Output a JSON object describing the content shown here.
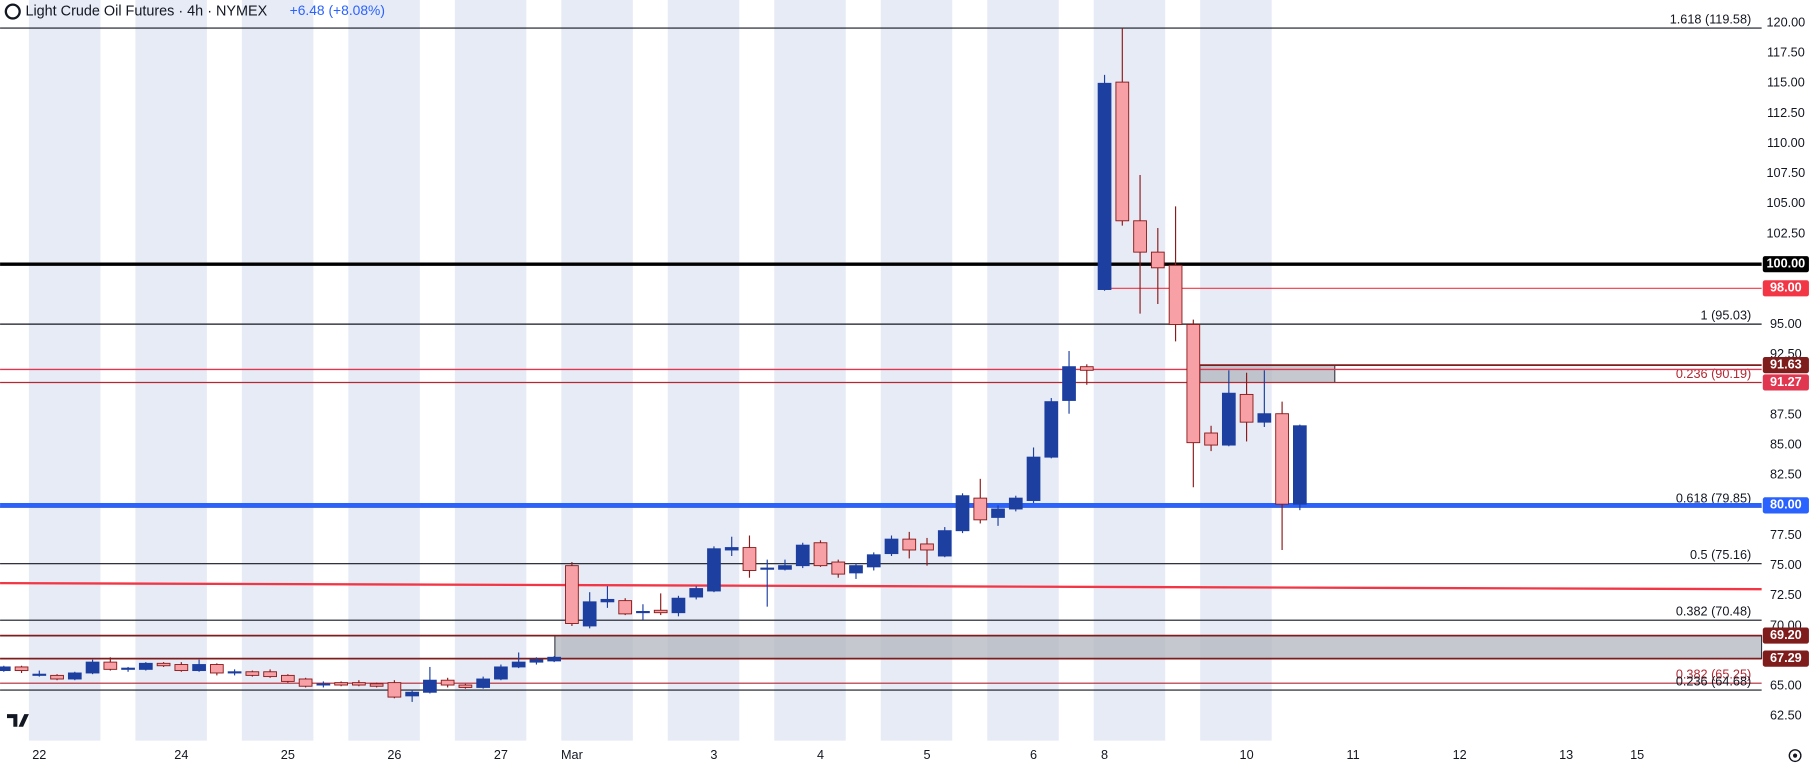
{
  "chart_data": {
    "type": "candlestick",
    "title": "Light Crude Oil Futures · 4h · NYMEX",
    "change": "+6.48 (+8.08%)",
    "up_color": "#1c3fa0",
    "down_color": "#f7a1a6",
    "down_wick_color": "#8b1a1a",
    "open": [
      66.3,
      66.6,
      65.9,
      65.9,
      65.6,
      66.1,
      67.0,
      66.4,
      66.4,
      66.9,
      66.8,
      66.3,
      66.8,
      66.1,
      66.2,
      66.2,
      65.9,
      65.6,
      65.1,
      65.3,
      65.3,
      65.2,
      65.3,
      64.2,
      64.5,
      65.5,
      65.1,
      64.9,
      65.6,
      66.6,
      67.0,
      67.1,
      75.0,
      70.0,
      72.0,
      72.1,
      71.1,
      71.3,
      71.1,
      72.4,
      72.9,
      76.3,
      76.5,
      74.7,
      74.7,
      75.0,
      76.9,
      75.3,
      74.4,
      74.9,
      76.0,
      77.2,
      76.8,
      75.8,
      77.9,
      80.6,
      79.0,
      79.7,
      80.4,
      84.0,
      88.7,
      91.5,
      97.9,
      115.1,
      103.6,
      101.0,
      99.9,
      95.0,
      86.0,
      85.0,
      89.2,
      86.9,
      87.6,
      80.1
    ],
    "high": [
      66.7,
      66.7,
      66.3,
      66.0,
      66.2,
      67.2,
      67.4,
      66.6,
      67.0,
      67.0,
      67.0,
      67.2,
      66.9,
      66.4,
      66.3,
      66.4,
      66.0,
      65.7,
      65.4,
      65.4,
      65.5,
      65.3,
      65.5,
      64.7,
      66.6,
      65.7,
      65.2,
      65.8,
      66.8,
      67.8,
      67.4,
      67.5,
      75.3,
      72.8,
      73.3,
      72.3,
      71.8,
      72.7,
      72.5,
      73.3,
      76.6,
      77.4,
      77.5,
      75.5,
      75.5,
      76.9,
      77.1,
      75.5,
      75.2,
      76.1,
      77.5,
      77.8,
      77.3,
      78.2,
      81.0,
      82.2,
      80.0,
      80.8,
      84.8,
      88.9,
      92.8,
      91.7,
      115.7,
      119.6,
      107.4,
      103.0,
      104.8,
      95.4,
      86.6,
      91.2,
      91.0,
      91.2,
      88.6,
      86.7
    ],
    "low": [
      66.2,
      66.1,
      65.8,
      65.5,
      65.5,
      66.0,
      66.3,
      66.2,
      66.3,
      66.6,
      66.2,
      66.2,
      65.9,
      65.9,
      65.8,
      65.7,
      65.3,
      64.9,
      64.9,
      65.0,
      65.0,
      64.9,
      64.0,
      63.7,
      64.4,
      64.9,
      64.8,
      64.8,
      65.5,
      66.5,
      66.8,
      67.0,
      70.0,
      69.8,
      71.5,
      70.9,
      70.5,
      70.9,
      70.8,
      72.2,
      72.8,
      75.8,
      74.0,
      71.6,
      74.6,
      74.8,
      74.9,
      74.0,
      73.9,
      74.6,
      75.8,
      75.6,
      75.0,
      75.7,
      77.7,
      78.5,
      78.3,
      79.5,
      80.2,
      83.9,
      87.6,
      90.0,
      97.8,
      103.2,
      95.9,
      96.7,
      93.6,
      81.5,
      84.5,
      84.9,
      85.3,
      86.5,
      76.3,
      79.6
    ],
    "close": [
      66.6,
      66.3,
      66.0,
      65.6,
      66.1,
      67.0,
      66.4,
      66.5,
      66.9,
      66.7,
      66.3,
      66.8,
      66.1,
      66.2,
      65.9,
      65.8,
      65.4,
      65.0,
      65.2,
      65.1,
      65.1,
      65.0,
      64.1,
      64.5,
      65.5,
      65.1,
      64.9,
      65.6,
      66.6,
      67.0,
      67.2,
      67.4,
      70.2,
      72.0,
      72.2,
      71.0,
      71.2,
      71.1,
      72.3,
      73.1,
      76.4,
      76.5,
      74.6,
      74.8,
      75.0,
      76.7,
      75.0,
      74.3,
      75.0,
      75.9,
      77.2,
      76.3,
      76.3,
      77.9,
      80.8,
      78.8,
      79.7,
      80.6,
      84.0,
      88.6,
      91.5,
      91.2,
      115.0,
      103.6,
      101.0,
      99.7,
      95.0,
      85.2,
      85.0,
      89.3,
      86.9,
      87.6,
      80.1,
      86.6
    ],
    "xlim": [
      -0.21,
      99.01
    ],
    "xticks": [
      {
        "value": 2,
        "label": "22"
      },
      {
        "value": 10,
        "label": "24"
      },
      {
        "value": 16,
        "label": "25"
      },
      {
        "value": 22,
        "label": "26"
      },
      {
        "value": 28,
        "label": "27"
      },
      {
        "value": 32,
        "label": "Mar"
      },
      {
        "value": 40,
        "label": "3"
      },
      {
        "value": 46,
        "label": "4"
      },
      {
        "value": 52,
        "label": "5"
      },
      {
        "value": 58,
        "label": "6"
      },
      {
        "value": 62,
        "label": "8"
      },
      {
        "value": 70,
        "label": "10"
      },
      {
        "value": 76,
        "label": "11"
      },
      {
        "value": 82,
        "label": "12"
      },
      {
        "value": 88,
        "label": "13"
      },
      {
        "value": 92,
        "label": "15"
      }
    ],
    "ylim": [
      60.49,
      121.91
    ],
    "yticks": [
      {
        "value": 62.5,
        "label": "62.50"
      },
      {
        "value": 65,
        "label": "65.00"
      },
      {
        "value": 70,
        "label": "70.00"
      },
      {
        "value": 72.5,
        "label": "72.50"
      },
      {
        "value": 75,
        "label": "75.00"
      },
      {
        "value": 77.5,
        "label": "77.50"
      },
      {
        "value": 82.5,
        "label": "82.50"
      },
      {
        "value": 85,
        "label": "85.00"
      },
      {
        "value": 87.5,
        "label": "87.50"
      },
      {
        "value": 92.5,
        "label": "92.50"
      },
      {
        "value": 95,
        "label": "95.00"
      },
      {
        "value": 102.5,
        "label": "102.50"
      },
      {
        "value": 105,
        "label": "105.00"
      },
      {
        "value": 107.5,
        "label": "107.50"
      },
      {
        "value": 110,
        "label": "110.00"
      },
      {
        "value": 112.5,
        "label": "112.50"
      },
      {
        "value": 115,
        "label": "115.00"
      },
      {
        "value": 117.5,
        "label": "117.50"
      },
      {
        "value": 120,
        "label": "120.00"
      }
    ],
    "fibs": [
      {
        "label": "1.618 (119.58)",
        "value": 119.58,
        "color": "#131722"
      },
      {
        "label": "1 (95.03)",
        "value": 95.03,
        "color": "#131722"
      },
      {
        "label": "0.236 (90.19)",
        "value": 90.19,
        "color": "#b22833"
      },
      {
        "label": "0.618 (79.85)",
        "value": 79.85,
        "color": "#131722"
      },
      {
        "label": "0.5 (75.16)",
        "value": 75.16,
        "color": "#131722"
      },
      {
        "label": "0.382 (70.48)",
        "value": 70.48,
        "color": "#131722"
      },
      {
        "label": "0.382 (65.25)",
        "value": 65.25,
        "color": "#b22833"
      },
      {
        "label": "0.236 (64.68)",
        "value": 64.68,
        "color": "#131722"
      }
    ],
    "price_lines": [
      {
        "value": 100,
        "label": "100.00",
        "color": "#000000",
        "width": 3
      },
      {
        "value": 98,
        "label": "98.00",
        "color": "#f23645",
        "width": 1,
        "x0": 61.8
      },
      {
        "value": 91.63,
        "label": "91.63",
        "color": "#7f1d1d",
        "width": 1.5,
        "x0": 67.37
      },
      {
        "value": 91.27,
        "label": "91.27",
        "color": "#e0364f",
        "width": 1.2
      },
      {
        "value": 80,
        "label": "80.00",
        "color": "#2962ff",
        "width": 4
      },
      {
        "value": 69.2,
        "label": "69.20",
        "color": "#7f1d1d",
        "width": 1.5
      },
      {
        "value": 67.29,
        "label": "67.29",
        "color": "#7f1d1d",
        "width": 1.5
      }
    ],
    "zones": [
      {
        "high": 91.63,
        "low": 90.19,
        "x0": 67.37,
        "x1": 74.97,
        "color": "#b2b5be"
      },
      {
        "high": 69.2,
        "low": 67.29,
        "x0": 31.04,
        "color": "#b2b5be"
      }
    ],
    "trendline": {
      "values": [
        73.55,
        73.05
      ],
      "color": "#f23645"
    }
  }
}
